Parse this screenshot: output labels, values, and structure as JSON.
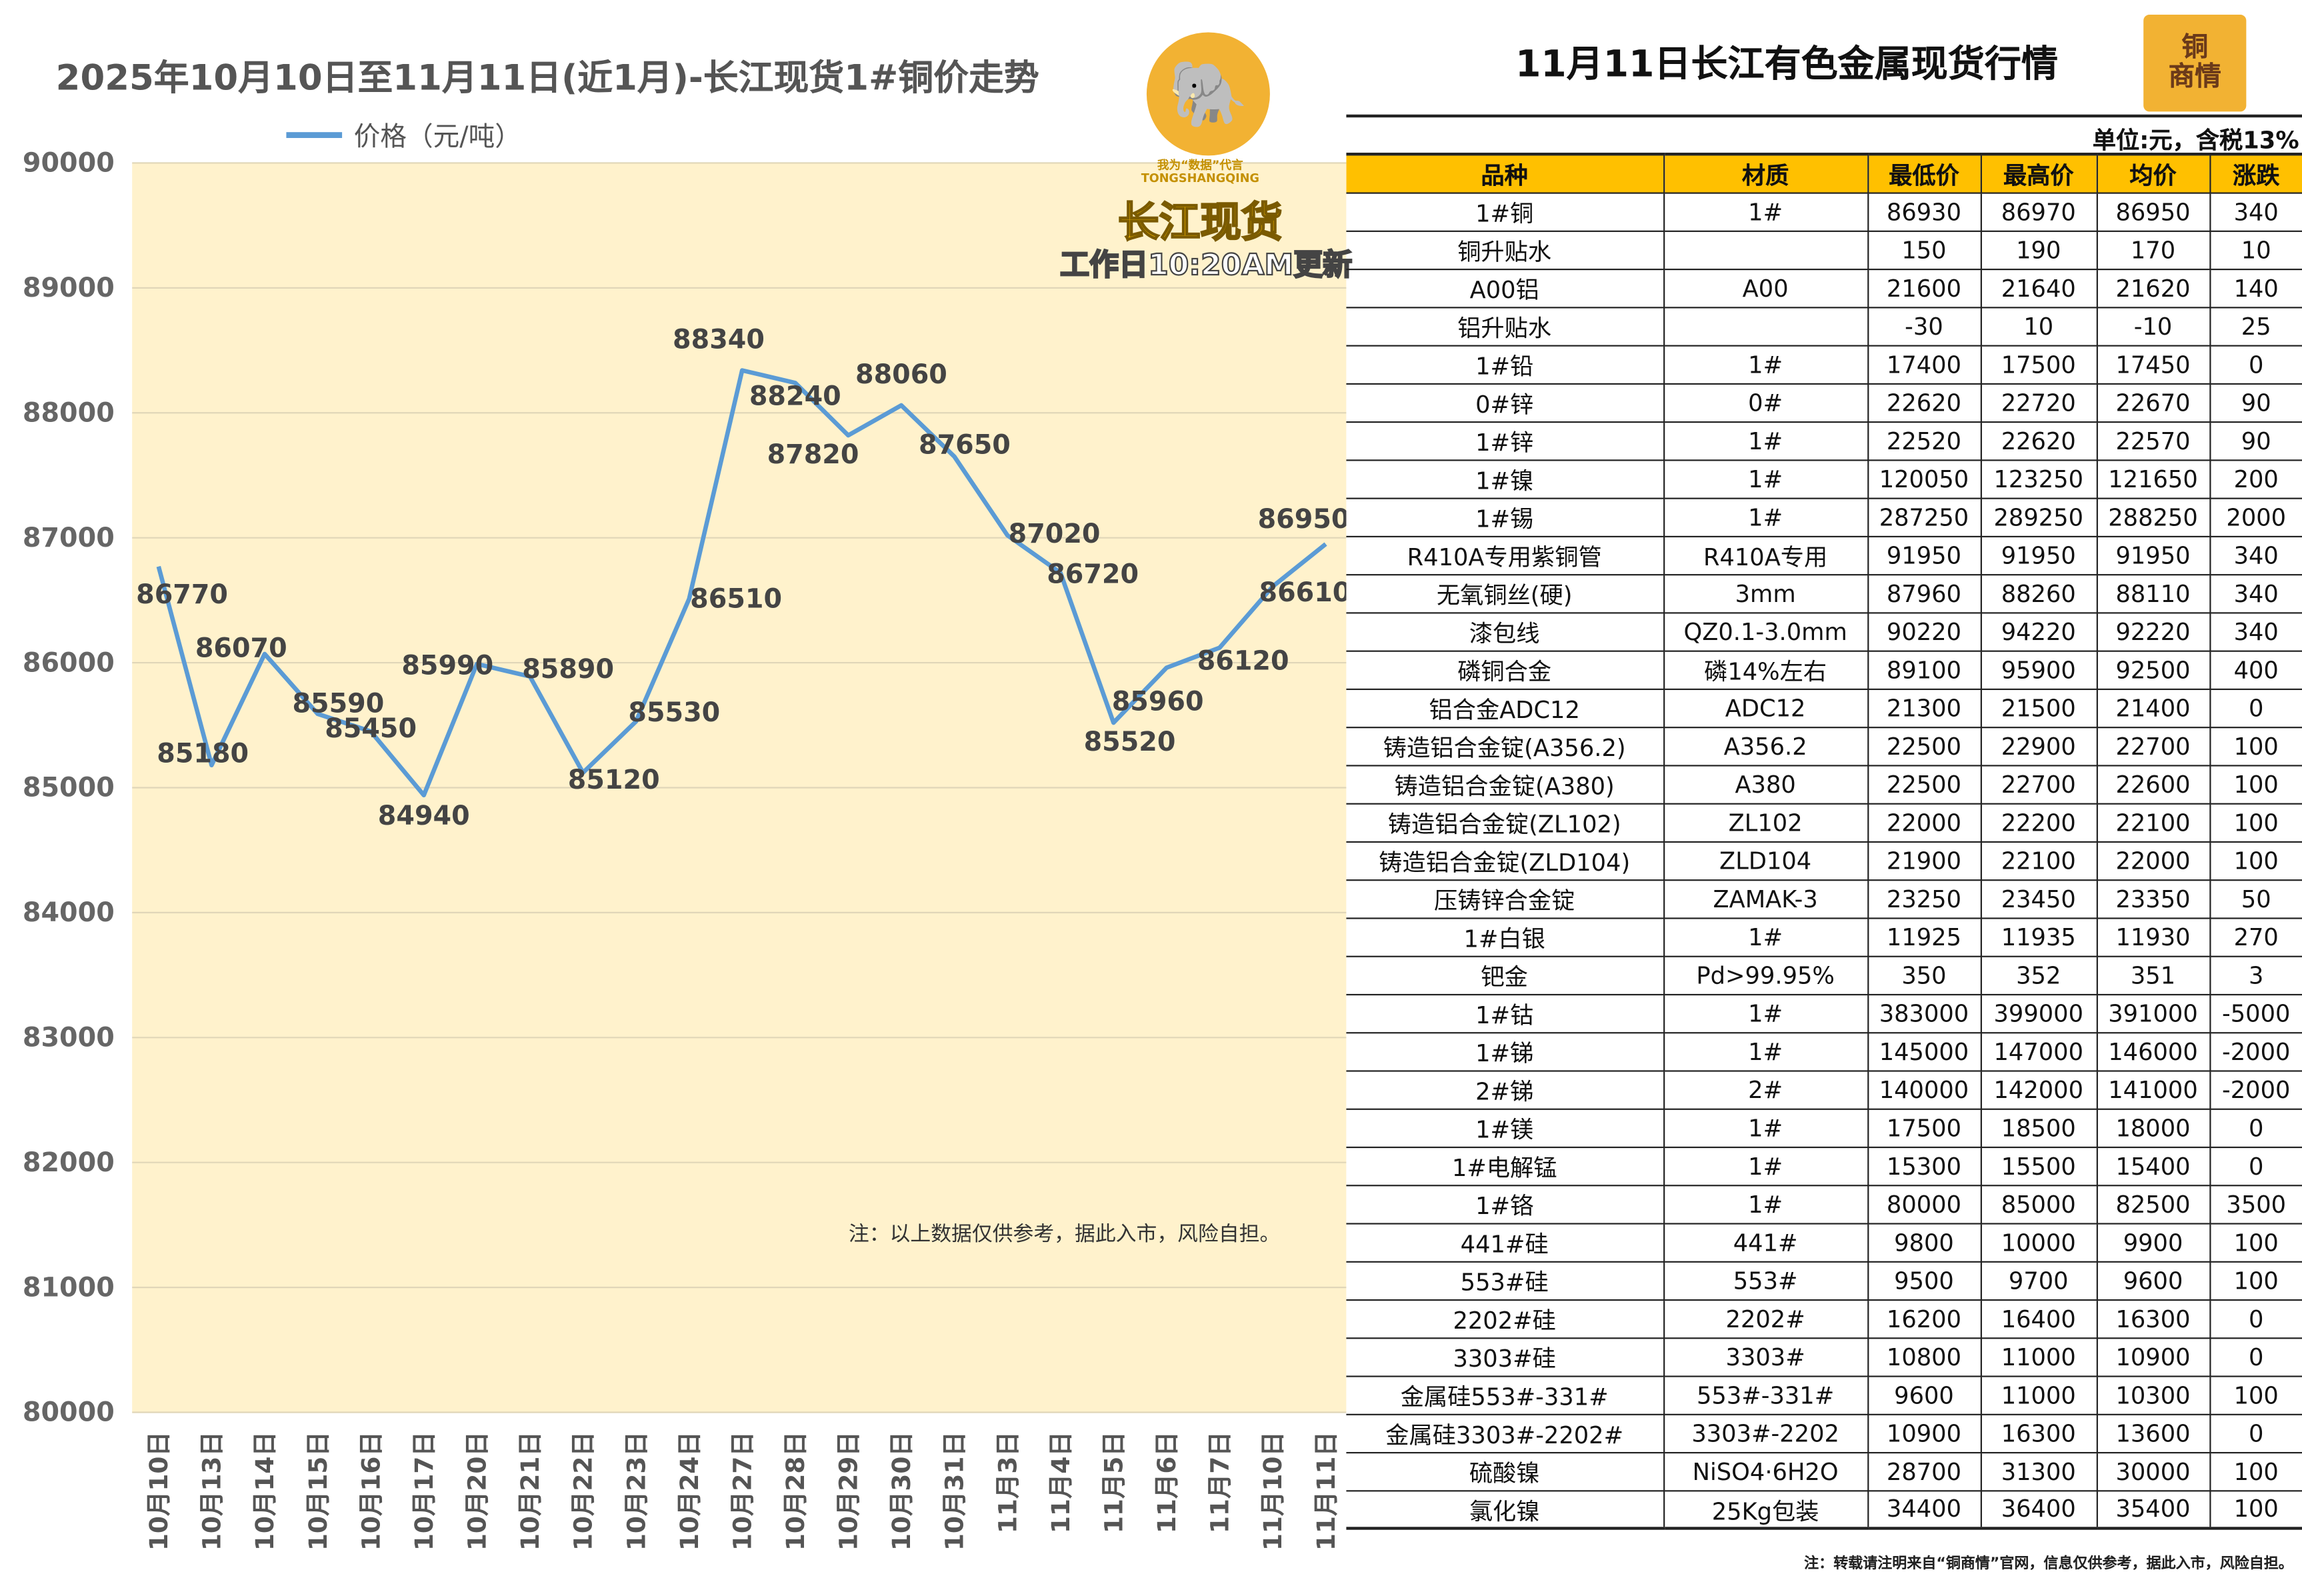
{
  "chart_data": {
    "type": "line",
    "title": "2025年10月10日至11月11日(近1月)-长江现货1#铜价走势",
    "legend": "价格（元/吨）",
    "legend_position": "top-left",
    "categories": [
      "10月10日",
      "10月13日",
      "10月14日",
      "10月15日",
      "10月16日",
      "10月17日",
      "10月20日",
      "10月21日",
      "10月22日",
      "10月23日",
      "10月24日",
      "10月27日",
      "10月28日",
      "10月29日",
      "10月30日",
      "10月31日",
      "11月3日",
      "11月4日",
      "11月5日",
      "11月6日",
      "11月7日",
      "11月10日",
      "11月11日"
    ],
    "series": [
      {
        "name": "价格（元/吨）",
        "values": [
          86770,
          85180,
          86070,
          85590,
          85450,
          84940,
          85990,
          85890,
          85120,
          85530,
          86510,
          88340,
          88240,
          87820,
          88060,
          87650,
          87020,
          86720,
          85520,
          85960,
          86120,
          86610,
          86950
        ]
      }
    ],
    "ylim": [
      80000,
      90000
    ],
    "yticks": [
      80000,
      81000,
      82000,
      83000,
      84000,
      85000,
      86000,
      87000,
      88000,
      89000,
      90000
    ],
    "grid": true,
    "line_color": "#5b9bd5",
    "plot_bg": "#fff2cc"
  },
  "overlay": {
    "slogan": "我为“数据”代言",
    "slogan_en": "TONGSHANGQING",
    "brand": "长江现货",
    "update": "工作日10:20AM更新",
    "note": "注：以上数据仅供参考，据此入市，风险自担。",
    "logo_icon": "elephant-mascot"
  },
  "table": {
    "title": "11月11日长江有色金属现货行情",
    "logo_text": [
      "铜",
      "商情"
    ],
    "unit": "单位:元，含税13%",
    "headers": [
      "品种",
      "材质",
      "最低价",
      "最高价",
      "均价",
      "涨跌"
    ],
    "header_color": "#ffc000",
    "rows": [
      [
        "1#铜",
        "1#",
        "86930",
        "86970",
        "86950",
        "340"
      ],
      [
        "铜升贴水",
        "",
        "150",
        "190",
        "170",
        "10"
      ],
      [
        "A00铝",
        "A00",
        "21600",
        "21640",
        "21620",
        "140"
      ],
      [
        "铝升贴水",
        "",
        "-30",
        "10",
        "-10",
        "25"
      ],
      [
        "1#铅",
        "1#",
        "17400",
        "17500",
        "17450",
        "0"
      ],
      [
        "0#锌",
        "0#",
        "22620",
        "22720",
        "22670",
        "90"
      ],
      [
        "1#锌",
        "1#",
        "22520",
        "22620",
        "22570",
        "90"
      ],
      [
        "1#镍",
        "1#",
        "120050",
        "123250",
        "121650",
        "200"
      ],
      [
        "1#锡",
        "1#",
        "287250",
        "289250",
        "288250",
        "2000"
      ],
      [
        "R410A专用紫铜管",
        "R410A专用",
        "91950",
        "91950",
        "91950",
        "340"
      ],
      [
        "无氧铜丝(硬)",
        "3mm",
        "87960",
        "88260",
        "88110",
        "340"
      ],
      [
        "漆包线",
        "QZ0.1-3.0mm",
        "90220",
        "94220",
        "92220",
        "340"
      ],
      [
        "磷铜合金",
        "磷14%左右",
        "89100",
        "95900",
        "92500",
        "400"
      ],
      [
        "铝合金ADC12",
        "ADC12",
        "21300",
        "21500",
        "21400",
        "0"
      ],
      [
        "铸造铝合金锭(A356.2)",
        "A356.2",
        "22500",
        "22900",
        "22700",
        "100"
      ],
      [
        "铸造铝合金锭(A380)",
        "A380",
        "22500",
        "22700",
        "22600",
        "100"
      ],
      [
        "铸造铝合金锭(ZL102)",
        "ZL102",
        "22000",
        "22200",
        "22100",
        "100"
      ],
      [
        "铸造铝合金锭(ZLD104)",
        "ZLD104",
        "21900",
        "22100",
        "22000",
        "100"
      ],
      [
        "压铸锌合金锭",
        "ZAMAK-3",
        "23250",
        "23450",
        "23350",
        "50"
      ],
      [
        "1#白银",
        "1#",
        "11925",
        "11935",
        "11930",
        "270"
      ],
      [
        "钯金",
        "Pd>99.95%",
        "350",
        "352",
        "351",
        "3"
      ],
      [
        "1#钴",
        "1#",
        "383000",
        "399000",
        "391000",
        "-5000"
      ],
      [
        "1#锑",
        "1#",
        "145000",
        "147000",
        "146000",
        "-2000"
      ],
      [
        "2#锑",
        "2#",
        "140000",
        "142000",
        "141000",
        "-2000"
      ],
      [
        "1#镁",
        "1#",
        "17500",
        "18500",
        "18000",
        "0"
      ],
      [
        "1#电解锰",
        "1#",
        "15300",
        "15500",
        "15400",
        "0"
      ],
      [
        "1#铬",
        "1#",
        "80000",
        "85000",
        "82500",
        "3500"
      ],
      [
        "441#硅",
        "441#",
        "9800",
        "10000",
        "9900",
        "100"
      ],
      [
        "553#硅",
        "553#",
        "9500",
        "9700",
        "9600",
        "100"
      ],
      [
        "2202#硅",
        "2202#",
        "16200",
        "16400",
        "16300",
        "0"
      ],
      [
        "3303#硅",
        "3303#",
        "10800",
        "11000",
        "10900",
        "0"
      ],
      [
        "金属硅553#-331#",
        "553#-331#",
        "9600",
        "11000",
        "10300",
        "100"
      ],
      [
        "金属硅3303#-2202#",
        "3303#-2202",
        "10900",
        "16300",
        "13600",
        "0"
      ],
      [
        "硫酸镍",
        "NiSO4·6H2O",
        "28700",
        "31300",
        "30000",
        "100"
      ],
      [
        "氯化镍",
        "25Kg包装",
        "34400",
        "36400",
        "35400",
        "100"
      ]
    ],
    "footnote": "注：转载请注明来自“铜商情”官网，信息仅供参考，据此入市，风险自担。"
  }
}
